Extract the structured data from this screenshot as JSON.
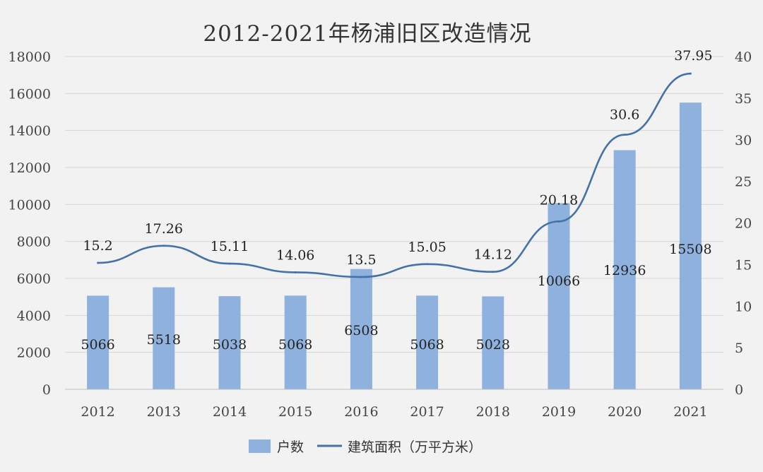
{
  "chart_data": {
    "type": "bar",
    "title": "2012-2021年杨浦旧区改造情况",
    "categories": [
      "2012",
      "2013",
      "2014",
      "2015",
      "2016",
      "2017",
      "2018",
      "2019",
      "2020",
      "2021"
    ],
    "series": [
      {
        "name": "户数",
        "type": "bar",
        "axis": "left",
        "values": [
          5066,
          5518,
          5038,
          5068,
          6508,
          5068,
          5028,
          10066,
          12936,
          15508
        ],
        "color": "#8fb1de"
      },
      {
        "name": "建筑面积（万平方米）",
        "type": "line",
        "axis": "right",
        "values": [
          15.2,
          17.26,
          15.11,
          14.06,
          13.5,
          15.05,
          14.12,
          20.18,
          30.6,
          37.95
        ],
        "color": "#4472a8"
      }
    ],
    "y_left": {
      "min": 0,
      "max": 18000,
      "ticks": [
        "0",
        "2000",
        "4000",
        "6000",
        "8000",
        "10000",
        "12000",
        "14000",
        "16000",
        "18000"
      ]
    },
    "y_right": {
      "min": 0,
      "max": 40,
      "ticks": [
        "0",
        "5",
        "10",
        "15",
        "20",
        "25",
        "30",
        "35",
        "40"
      ]
    },
    "grid": true,
    "legend_position": "bottom"
  }
}
